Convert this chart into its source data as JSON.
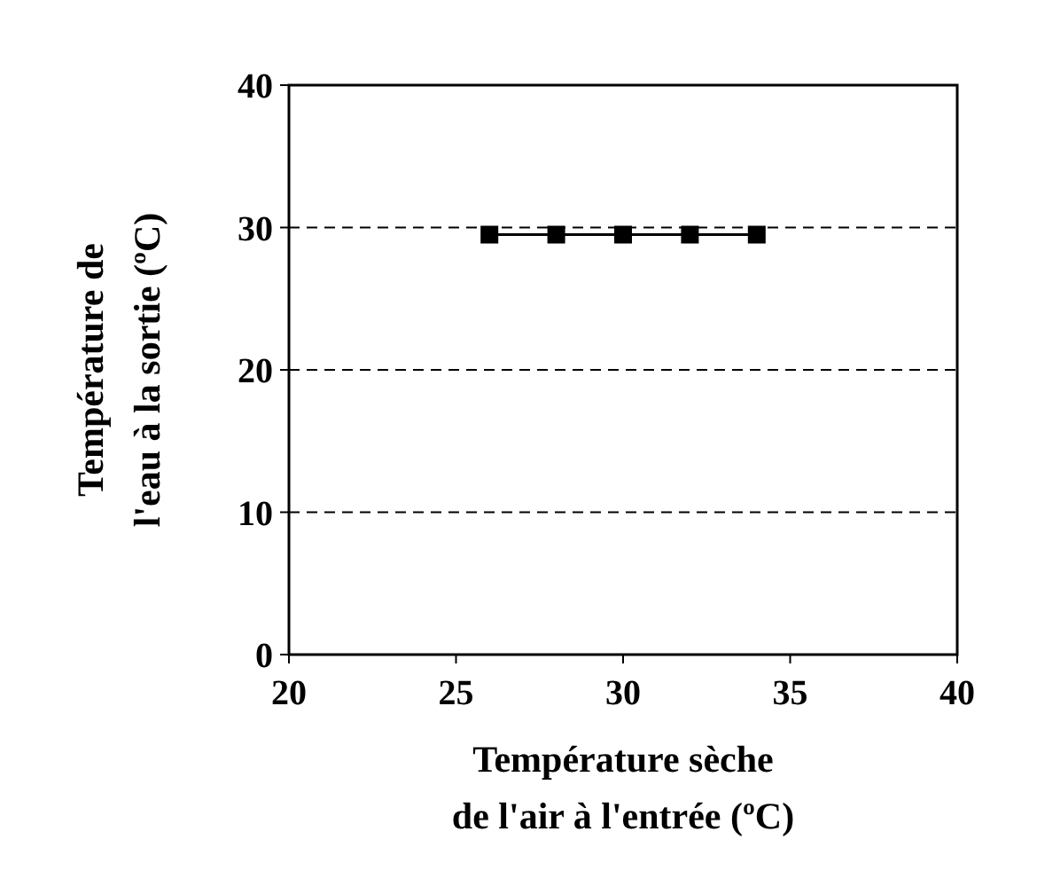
{
  "chart_data": {
    "type": "line",
    "xlabel": "Température sèche\nde l'air à l'entrée (ºC)",
    "ylabel": "Température de\nl'eau à la sortie (ºC)",
    "x": [
      26,
      28,
      30,
      32,
      34
    ],
    "series": [
      {
        "color": "#000000",
        "values": [
          29.5,
          29.5,
          29.5,
          29.5,
          29.5
        ]
      }
    ],
    "xlim": [
      20,
      40
    ],
    "xticks": [
      20,
      25,
      30,
      35,
      40
    ],
    "ylim": [
      0,
      40
    ],
    "yticks": [
      0,
      10,
      20,
      30,
      40
    ],
    "grid": "y",
    "marker": "square",
    "line_style": "solid"
  }
}
